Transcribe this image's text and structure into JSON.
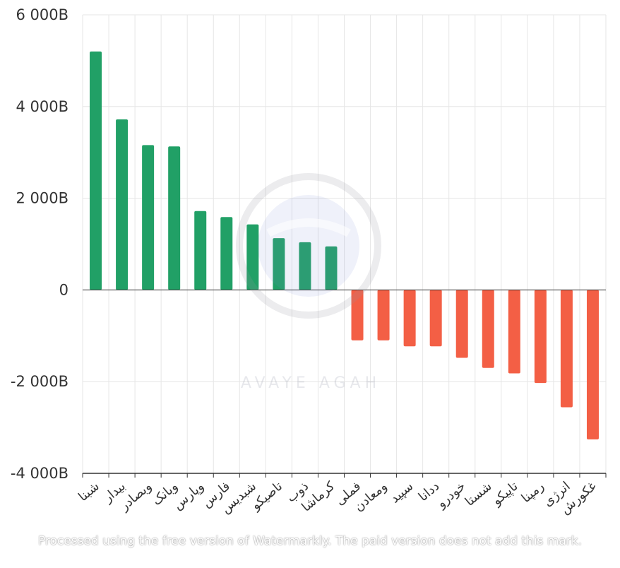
{
  "chart_data": {
    "type": "bar",
    "title": "",
    "xlabel": "",
    "ylabel": "",
    "ylim": [
      -4000,
      6000
    ],
    "y_ticks": [
      6000,
      4000,
      2000,
      0,
      -2000,
      -4000
    ],
    "y_tick_labels": [
      "6 000B",
      "4 000B",
      "2 000B",
      "0",
      "-2 000B",
      "-4 000B"
    ],
    "grid": true,
    "categories": [
      "شبنا",
      "بیدار",
      "وبصادر",
      "وبانک",
      "وپارس",
      "فارس",
      "شبدیس",
      "تاصیکو",
      "ذوب",
      "کرماشا",
      "فملی",
      "ومعادن",
      "سپید",
      "ددانا",
      "خودرو",
      "شستا",
      "تاپیکو",
      "رمپنا",
      "انرژی",
      "غکورش"
    ],
    "values": [
      5200,
      3720,
      3160,
      3130,
      1720,
      1590,
      1430,
      1130,
      1040,
      950,
      -1100,
      -1100,
      -1230,
      -1230,
      -1480,
      -1700,
      -1820,
      -2030,
      -2560,
      -3260
    ],
    "colors": {
      "positive": "#21a066",
      "negative": "#f35f45",
      "axis": "#333333",
      "grid": "#e6e6e6"
    }
  },
  "watermark": {
    "brand": "AVAYE AGAH",
    "note": "Processed using the free version of Watermarkly. The paid version does not add this mark."
  }
}
